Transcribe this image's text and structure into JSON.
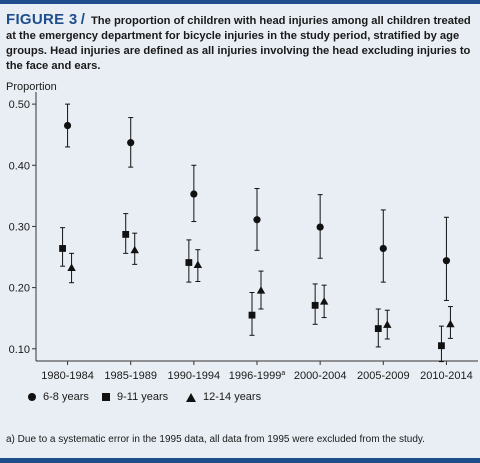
{
  "caption": {
    "label": "FIGURE 3",
    "separator": "/",
    "text": "The proportion of children with head injuries among all children treated at the emergency department for bicycle injuries in the study period, stratified by age groups. Head injuries are defined as all injuries involving the head excluding injuries to the face and ears."
  },
  "footnote": "a) Due to a systematic error in the 1995 data, all data from 1995 were excluded from the study.",
  "chart_data": {
    "type": "scatter",
    "title": "",
    "ylabel": "Proportion",
    "xlabel": "",
    "ylim": [
      0.08,
      0.51
    ],
    "yticks": [
      "0.10",
      "0.20",
      "0.30",
      "0.40",
      "0.50"
    ],
    "categories": [
      "1980-1984",
      "1985-1989",
      "1990-1994",
      "1996-1999",
      "2000-2004",
      "2005-2009",
      "2010-2014"
    ],
    "category_footnote_marks": [
      "",
      "",
      "",
      "a",
      "",
      "",
      ""
    ],
    "legend_position": "bottom",
    "grid": false,
    "series": [
      {
        "name": "6-8 years",
        "marker": "circle",
        "values": [
          0.465,
          0.437,
          0.353,
          0.311,
          0.299,
          0.264,
          0.244
        ],
        "lower": [
          0.43,
          0.397,
          0.308,
          0.261,
          0.248,
          0.209,
          0.179
        ],
        "upper": [
          0.5,
          0.478,
          0.4,
          0.362,
          0.352,
          0.327,
          0.315
        ]
      },
      {
        "name": "9-11 years",
        "marker": "square",
        "values": [
          0.264,
          0.287,
          0.241,
          0.155,
          0.171,
          0.133,
          0.105
        ],
        "lower": [
          0.235,
          0.256,
          0.209,
          0.122,
          0.14,
          0.103,
          0.079
        ],
        "upper": [
          0.298,
          0.321,
          0.278,
          0.192,
          0.206,
          0.165,
          0.137
        ]
      },
      {
        "name": "12-14 years",
        "marker": "triangle",
        "values": [
          0.232,
          0.261,
          0.237,
          0.195,
          0.177,
          0.139,
          0.14
        ],
        "lower": [
          0.208,
          0.238,
          0.21,
          0.165,
          0.151,
          0.116,
          0.117
        ],
        "upper": [
          0.256,
          0.289,
          0.262,
          0.227,
          0.204,
          0.163,
          0.169
        ]
      }
    ]
  },
  "colors": {
    "accent": "#1f4e8c",
    "marker": "#111111",
    "background": "#e8eef4"
  }
}
